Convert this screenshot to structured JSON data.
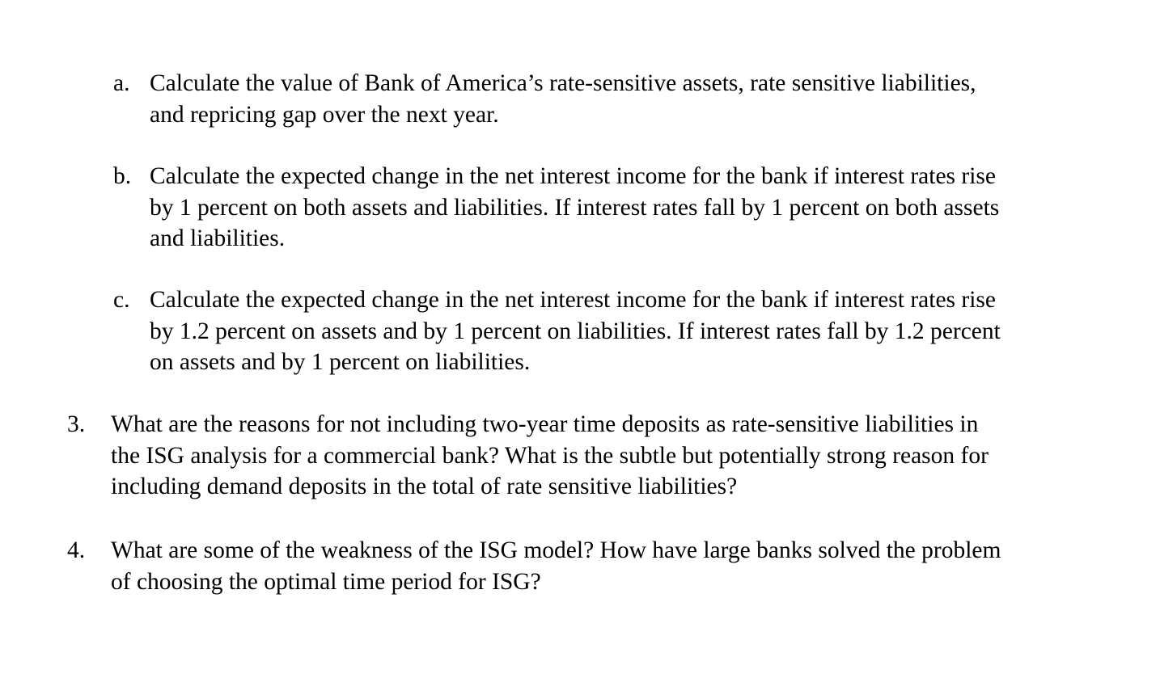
{
  "items": [
    {
      "label": "a.",
      "lines": [
        "Calculate the value of Bank of America’s rate-sensitive assets, rate sensitive liabilities,",
        "and repricing gap over the next year."
      ]
    },
    {
      "label": "b.",
      "lines": [
        "Calculate the expected change in the net interest income for the bank if interest rates rise",
        "by 1 percent on both assets and liabilities. If interest rates fall by 1 percent on both assets",
        "and liabilities."
      ]
    },
    {
      "label": "c.",
      "lines": [
        "Calculate the expected change in the net interest income for the bank if interest rates rise",
        "by 1.2 percent on assets and by 1 percent on liabilities. If interest rates fall by 1.2 percent",
        "on assets and by 1 percent on liabilities."
      ]
    },
    {
      "label": "3.",
      "lines": [
        "What are the reasons for not including two-year time deposits as rate-sensitive liabilities in",
        "the ISG analysis for a commercial bank? What is the subtle but potentially strong reason for",
        "including demand deposits in the total of rate sensitive liabilities?"
      ]
    },
    {
      "label": "4.",
      "lines": [
        "What are some of the weakness of the ISG model? How have large banks solved the problem",
        "of choosing the optimal time period for ISG?"
      ]
    }
  ]
}
